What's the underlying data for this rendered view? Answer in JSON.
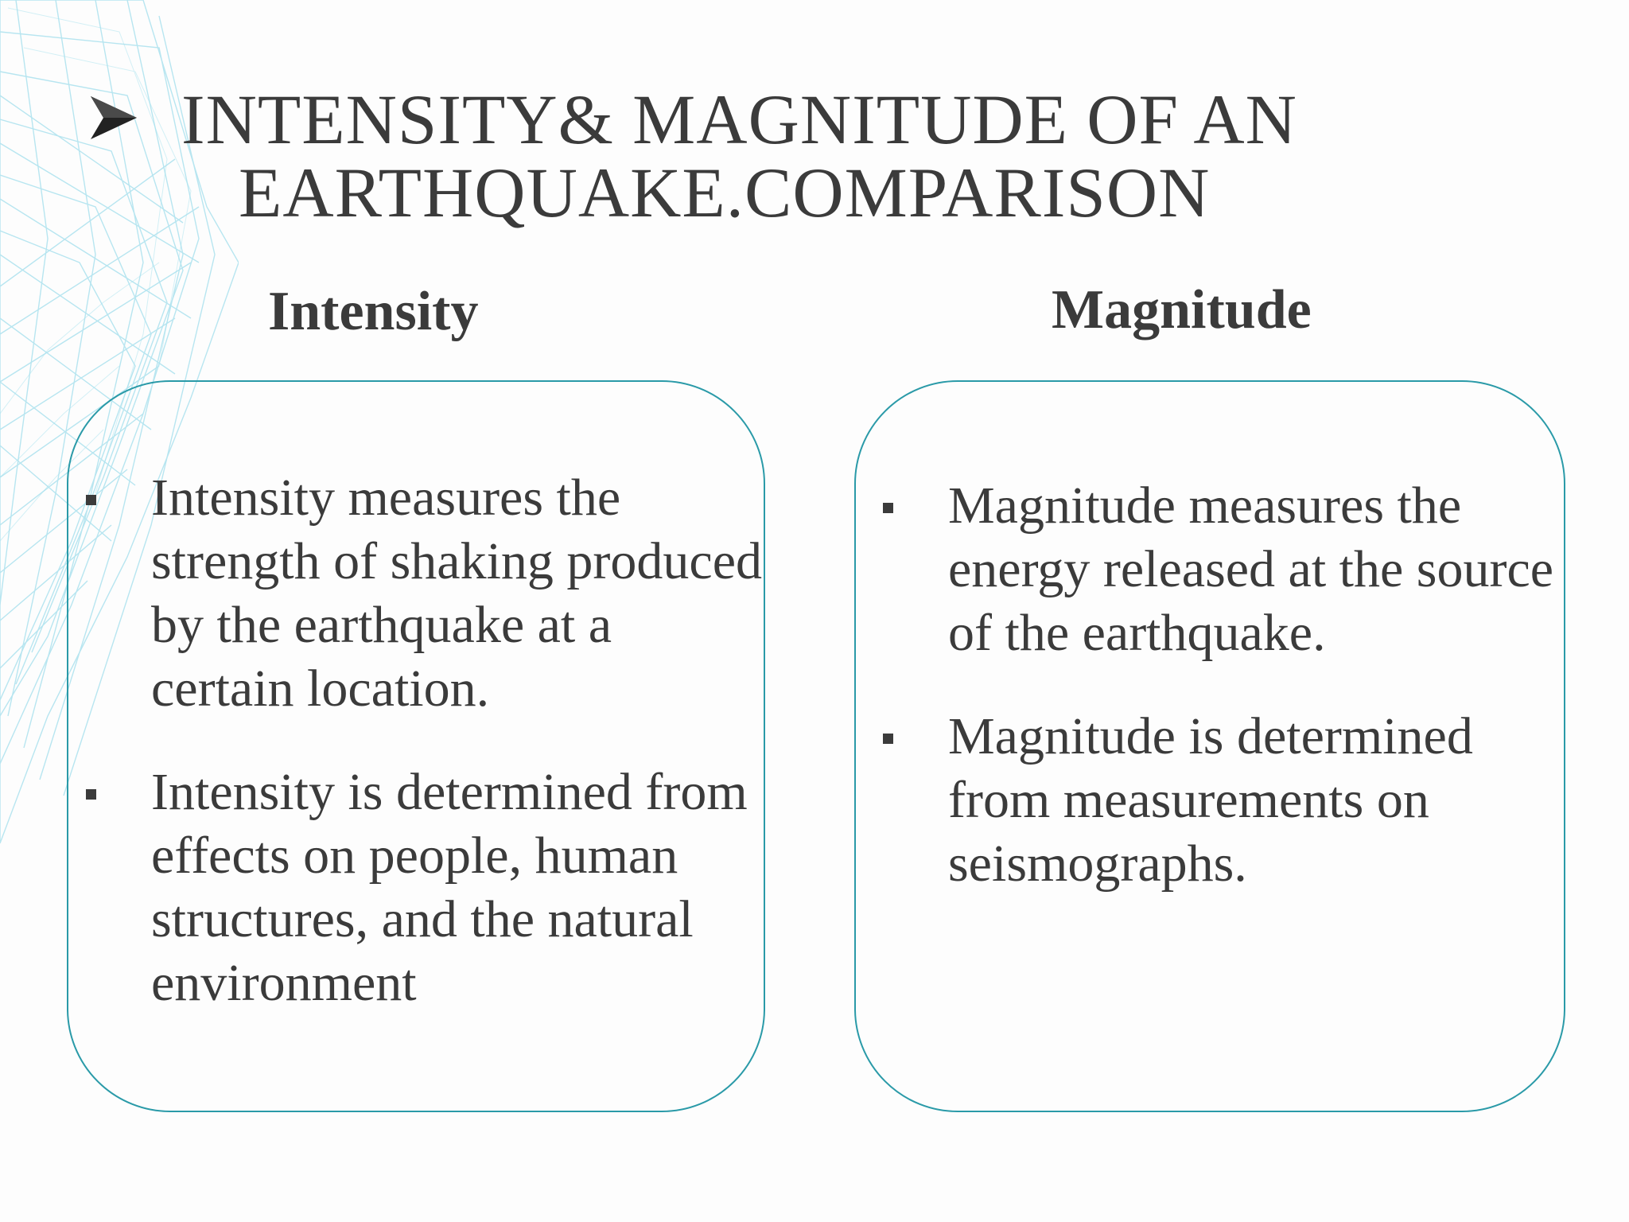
{
  "title": {
    "line1": "INTENSITY& MAGNITUDE OF AN",
    "line2": "EARTHQUAKE.COMPARISON"
  },
  "icons": {
    "title_bullet": "arrowhead-bullet-icon",
    "list_bullet": "square-bullet-icon"
  },
  "colors": {
    "text": "#3b3b3b",
    "card_border": "#2a9aa8",
    "decoration": "#7fd3e6"
  },
  "intensity": {
    "heading": "Intensity",
    "bullets": [
      "Intensity measures the strength of shaking produced by the earthquake at a certain location.",
      "Intensity is determined from effects on people, human structures, and the natural environment"
    ]
  },
  "magnitude": {
    "heading": "Magnitude",
    "bullets": [
      "Magnitude measures the energy released at the source of the earthquake.",
      "Magnitude is determined from measurements on seismographs."
    ]
  }
}
